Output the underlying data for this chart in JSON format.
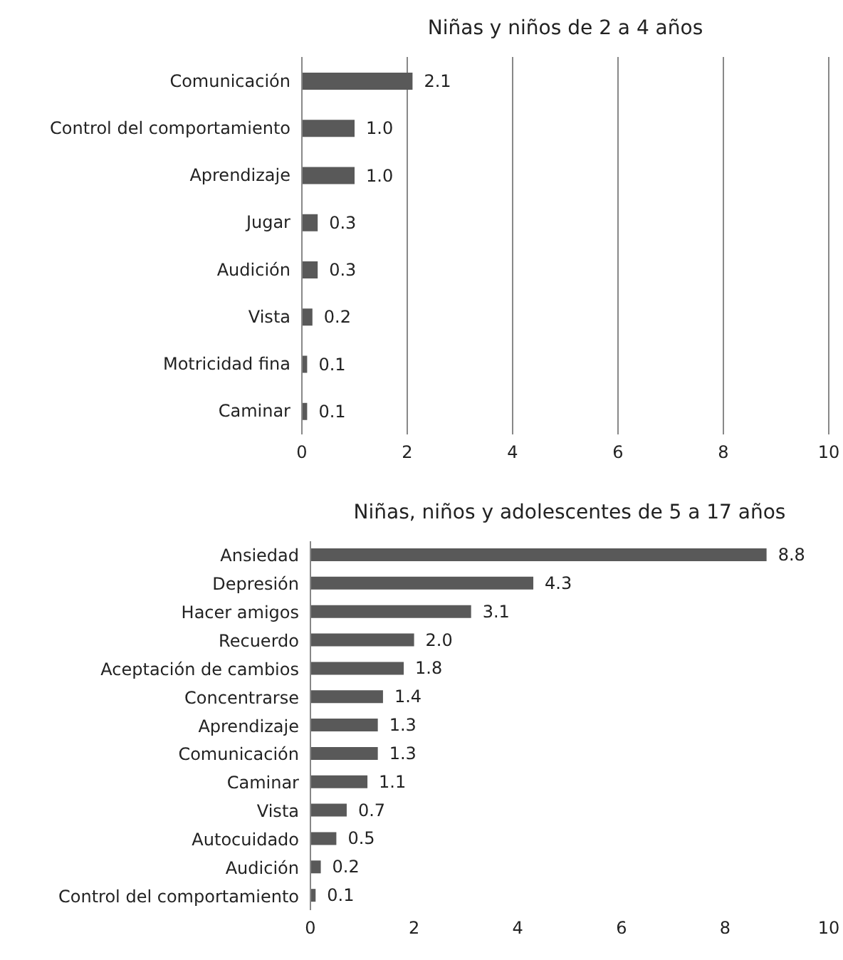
{
  "chart_data": [
    {
      "type": "bar",
      "orientation": "horizontal",
      "title": "Niñas y niños de 2 a 4 años",
      "categories": [
        "Comunicación",
        "Control del comportamiento",
        "Aprendizaje",
        "Jugar",
        "Audición",
        "Vista",
        "Motricidad fina",
        "Caminar"
      ],
      "values": [
        2.1,
        1.0,
        1.0,
        0.3,
        0.3,
        0.2,
        0.1,
        0.1
      ],
      "value_labels": [
        "2.1",
        "1.0",
        "1.0",
        "0.3",
        "0.3",
        "0.2",
        "0.1",
        "0.1"
      ],
      "color": "#595959",
      "xlim": [
        0,
        10
      ],
      "xticks": [
        0,
        2,
        4,
        6,
        8,
        10
      ],
      "grid": "x"
    },
    {
      "type": "bar",
      "orientation": "horizontal",
      "title": "Niñas, niños y adolescentes de 5 a 17 años",
      "categories": [
        "Ansiedad",
        "Depresión",
        "Hacer amigos",
        "Recuerdo",
        "Aceptación de cambios",
        "Concentrarse",
        "Aprendizaje",
        "Comunicación",
        "Caminar",
        "Vista",
        "Autocuidado",
        "Audición",
        "Control del comportamiento"
      ],
      "values": [
        8.8,
        4.3,
        3.1,
        2.0,
        1.8,
        1.4,
        1.3,
        1.3,
        1.1,
        0.7,
        0.5,
        0.2,
        0.1
      ],
      "value_labels": [
        "8.8",
        "4.3",
        "3.1",
        "2.0",
        "1.8",
        "1.4",
        "1.3",
        "1.3",
        "1.1",
        "0.7",
        "0.5",
        "0.2",
        "0.1"
      ],
      "color": "#595959",
      "xlim": [
        0,
        10
      ],
      "xticks": [
        0,
        2,
        4,
        6,
        8,
        10
      ],
      "grid": false
    }
  ]
}
